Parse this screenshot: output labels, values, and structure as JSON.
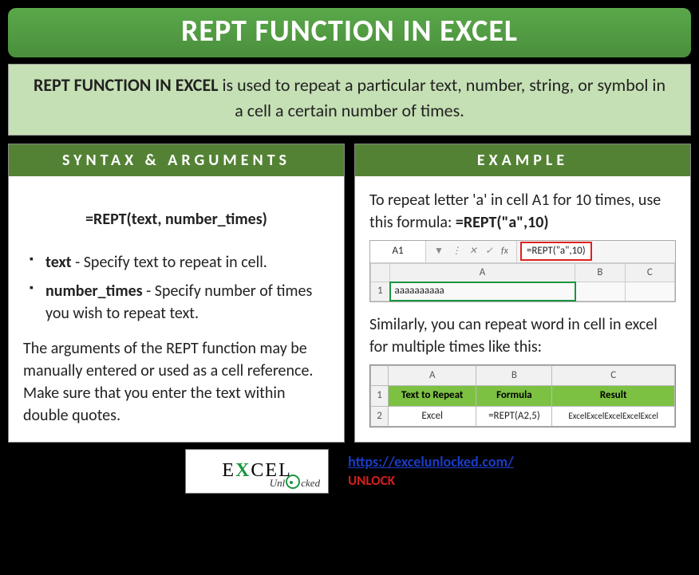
{
  "colors": {
    "title_bg_top": "#5aa84a",
    "title_bg_bot": "#4a8f3c",
    "title_text": "#ffffff",
    "desc_bg": "#c5e0b4",
    "card_head_bg": "#548235",
    "excel_green": "#7dc143",
    "excel_sel": "#1a9641",
    "link": "#1a3cc7",
    "unlock": "#d21f1f",
    "highlight_border": "#e02020"
  },
  "title": "REPT FUNCTION IN EXCEL",
  "description_bold": "REPT FUNCTION IN EXCEL",
  "description_rest": " is used to repeat a particular text, number, string, or symbol in a cell a certain number of times.",
  "left": {
    "heading": "SYNTAX & ARGUMENTS",
    "syntax": "=REPT(text, number_times)",
    "args": [
      {
        "name": "text",
        "desc": " - Specify text to repeat in cell."
      },
      {
        "name": "number_times",
        "desc": " - Specify number of times you wish to repeat text."
      }
    ],
    "note": "The arguments of the REPT function may be manually entered or used as a cell reference. Make sure that you enter the text within double quotes."
  },
  "right": {
    "heading": "EXAMPLE",
    "intro_a": "To repeat letter 'a' in cell A1 for 10 times, use this formula: ",
    "intro_b": "=REPT(\"a\",10)",
    "xl1": {
      "namebox": "A1",
      "formula": "=REPT(\"a\",10)",
      "cols": [
        "A",
        "B",
        "C"
      ],
      "row_label": "1",
      "a1_value": "aaaaaaaaaa"
    },
    "mid": "Similarly, you can repeat word in cell in excel for multiple times like this:",
    "xl2": {
      "cols": [
        "A",
        "B",
        "C"
      ],
      "headers": [
        "Text to Repeat",
        "Formula",
        "Result"
      ],
      "row1_label": "1",
      "row2_label": "2",
      "row2": [
        "Excel",
        "=REPT(A2,5)",
        "ExcelExcelExcelExcelExcel"
      ]
    }
  },
  "footer": {
    "logo_text_e1": "E",
    "logo_text_x": "X",
    "logo_text_cel": "CEL",
    "logo_sub": "Unlocked",
    "url": "https://excelunlocked.com/",
    "unlock": "UNLOCK"
  }
}
